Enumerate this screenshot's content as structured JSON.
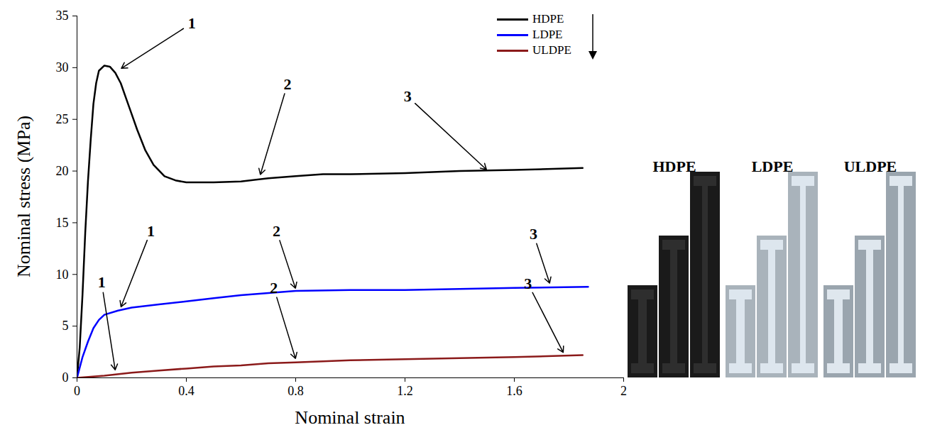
{
  "chart_data": {
    "type": "line",
    "x_label": "Nominal strain",
    "y_label": "Nominal stress (MPa)",
    "xlim": [
      0,
      2
    ],
    "xticks": [
      0,
      0.4,
      0.8,
      1.2,
      1.6,
      2
    ],
    "ylim": [
      0,
      35
    ],
    "yticks": [
      0,
      5,
      10,
      15,
      20,
      25,
      30,
      35
    ],
    "grid": false,
    "legend": "top-right",
    "series": [
      {
        "name": "HDPE",
        "color": "#000000",
        "x": [
          0,
          0.01,
          0.02,
          0.03,
          0.04,
          0.05,
          0.06,
          0.07,
          0.08,
          0.1,
          0.12,
          0.14,
          0.16,
          0.18,
          0.2,
          0.22,
          0.25,
          0.28,
          0.32,
          0.36,
          0.4,
          0.5,
          0.6,
          0.7,
          0.8,
          0.9,
          1.0,
          1.2,
          1.4,
          1.6,
          1.85
        ],
        "values": [
          0,
          3,
          8,
          14,
          19,
          23,
          26.5,
          28.5,
          29.7,
          30.2,
          30.1,
          29.5,
          28.5,
          27,
          25.5,
          24,
          22,
          20.6,
          19.5,
          19.1,
          18.9,
          18.9,
          19,
          19.3,
          19.5,
          19.7,
          19.7,
          19.8,
          20,
          20.1,
          20.3
        ]
      },
      {
        "name": "LDPE",
        "color": "#0000ff",
        "x": [
          0,
          0.02,
          0.04,
          0.06,
          0.08,
          0.1,
          0.15,
          0.2,
          0.3,
          0.4,
          0.5,
          0.6,
          0.7,
          0.8,
          1.0,
          1.2,
          1.4,
          1.6,
          1.87
        ],
        "values": [
          0,
          2,
          3.5,
          4.8,
          5.6,
          6.1,
          6.5,
          6.8,
          7.1,
          7.4,
          7.7,
          8.0,
          8.2,
          8.4,
          8.5,
          8.5,
          8.6,
          8.7,
          8.8
        ]
      },
      {
        "name": "ULDPE",
        "color": "#8b1a1a",
        "x": [
          0,
          0.1,
          0.2,
          0.3,
          0.4,
          0.5,
          0.6,
          0.7,
          0.8,
          1.0,
          1.2,
          1.4,
          1.6,
          1.85
        ],
        "values": [
          0,
          0.2,
          0.5,
          0.7,
          0.9,
          1.1,
          1.2,
          1.4,
          1.5,
          1.7,
          1.8,
          1.9,
          2.0,
          2.2
        ]
      }
    ],
    "annotations": [
      {
        "text": "1",
        "x": 0.16,
        "y": 29.9,
        "text_x": 0.42,
        "text_y": 34.3
      },
      {
        "text": "2",
        "x": 0.67,
        "y": 19.6,
        "text_x": 0.77,
        "text_y": 28.4
      },
      {
        "text": "3",
        "x": 1.5,
        "y": 20.1,
        "text_x": 1.21,
        "text_y": 27.2
      },
      {
        "text": "1",
        "x": 0.16,
        "y": 6.8,
        "text_x": 0.27,
        "text_y": 14.2
      },
      {
        "text": "2",
        "x": 0.8,
        "y": 8.6,
        "text_x": 0.73,
        "text_y": 14.2
      },
      {
        "text": "3",
        "x": 1.73,
        "y": 9.1,
        "text_x": 1.67,
        "text_y": 13.9
      },
      {
        "text": "1",
        "x": 0.14,
        "y": 0.7,
        "text_x": 0.09,
        "text_y": 9.2
      },
      {
        "text": "2",
        "x": 0.8,
        "y": 1.8,
        "text_x": 0.72,
        "text_y": 8.7
      },
      {
        "text": "3",
        "x": 1.78,
        "y": 2.4,
        "text_x": 1.65,
        "text_y": 9.1
      }
    ],
    "image_labels": [
      "HDPE",
      "LDPE",
      "ULDPE"
    ]
  }
}
